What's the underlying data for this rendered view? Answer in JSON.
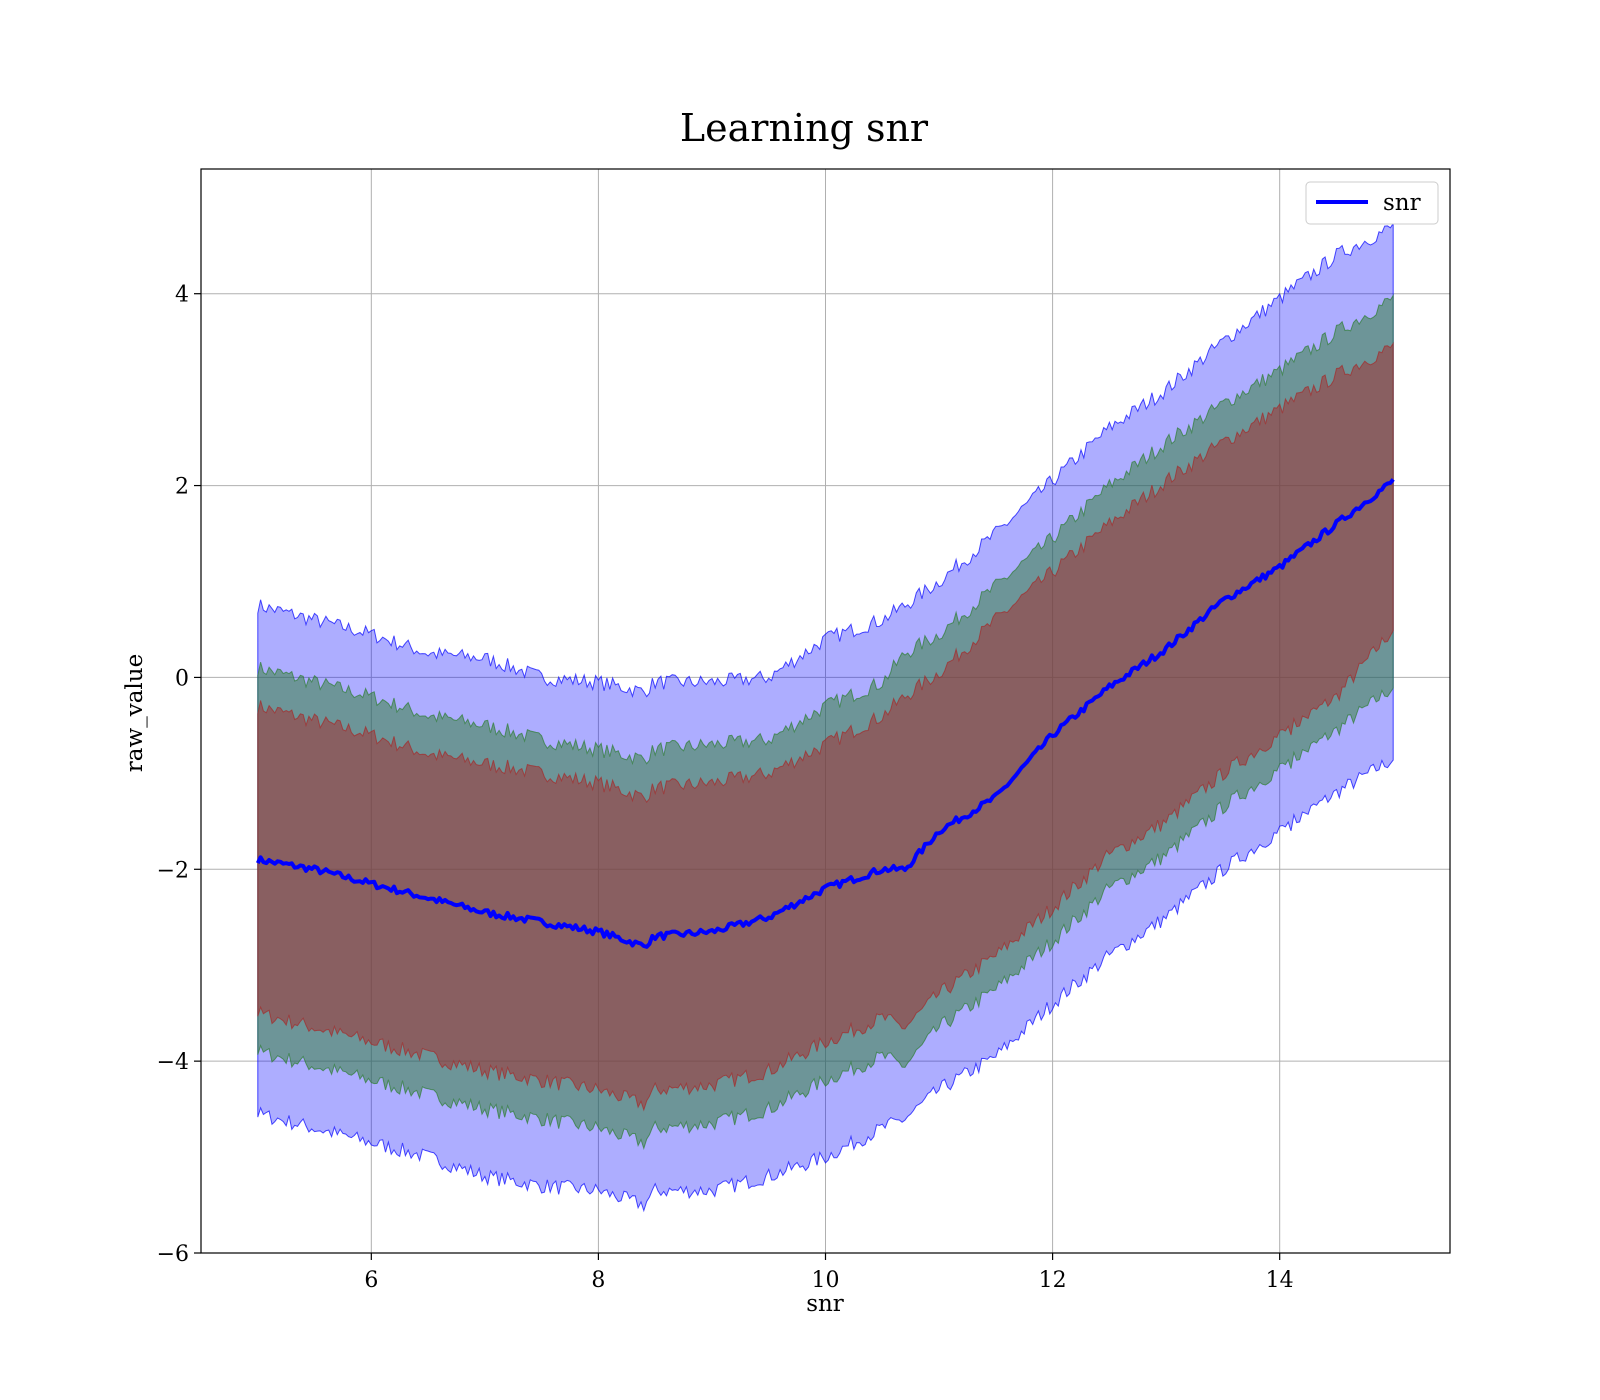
{
  "chart_data": {
    "type": "line",
    "title": "Learning snr",
    "xlabel": "snr",
    "ylabel": "raw_value",
    "xlim": [
      4.5,
      15.5
    ],
    "ylim": [
      -6,
      5.3
    ],
    "xticks": [
      6,
      8,
      10,
      12,
      14
    ],
    "yticks": [
      -6,
      -4,
      -2,
      0,
      2,
      4
    ],
    "xtick_labels": [
      "6",
      "8",
      "10",
      "12",
      "14"
    ],
    "ytick_labels": [
      "−6",
      "−4",
      "−2",
      "0",
      "2",
      "4"
    ],
    "grid": true,
    "legend": {
      "position": "top-right",
      "entries": [
        "snr"
      ]
    },
    "series": [
      {
        "name": "snr",
        "color": "#0000ff",
        "x": [
          5.0,
          5.5,
          6.0,
          6.5,
          7.0,
          7.5,
          8.0,
          8.4,
          8.5,
          9.0,
          9.5,
          10.0,
          10.5,
          10.7,
          11.0,
          11.5,
          12.0,
          12.5,
          13.0,
          13.5,
          14.0,
          14.5,
          15.0
        ],
        "values": [
          -1.9,
          -2.0,
          -2.15,
          -2.3,
          -2.45,
          -2.55,
          -2.65,
          -2.8,
          -2.7,
          -2.65,
          -2.5,
          -2.2,
          -2.0,
          -2.0,
          -1.6,
          -1.25,
          -0.6,
          -0.1,
          0.3,
          0.8,
          1.15,
          1.6,
          2.05
        ]
      }
    ],
    "bands": [
      {
        "color": "#0000ff",
        "upper": [
          0.75,
          0.6,
          0.45,
          0.25,
          0.2,
          0.0,
          -0.05,
          -0.15,
          -0.05,
          -0.05,
          0.0,
          0.4,
          0.6,
          0.75,
          1.0,
          1.5,
          2.05,
          2.6,
          3.0,
          3.5,
          3.95,
          4.4,
          4.7
        ],
        "lower": [
          -4.55,
          -4.7,
          -4.85,
          -5.0,
          -5.2,
          -5.3,
          -5.35,
          -5.5,
          -5.35,
          -5.35,
          -5.2,
          -5.0,
          -4.7,
          -4.6,
          -4.3,
          -3.95,
          -3.4,
          -2.9,
          -2.5,
          -2.0,
          -1.6,
          -1.2,
          -0.85
        ]
      },
      {
        "color": "#2e7d32",
        "upper": [
          0.1,
          -0.05,
          -0.2,
          -0.4,
          -0.5,
          -0.65,
          -0.75,
          -0.85,
          -0.75,
          -0.7,
          -0.65,
          -0.3,
          -0.05,
          0.25,
          0.45,
          0.95,
          1.45,
          2.0,
          2.45,
          2.85,
          3.2,
          3.6,
          3.95
        ],
        "lower": [
          -3.9,
          -4.05,
          -4.2,
          -4.35,
          -4.5,
          -4.6,
          -4.7,
          -4.85,
          -4.7,
          -4.65,
          -4.5,
          -4.2,
          -3.95,
          -4.05,
          -3.65,
          -3.25,
          -2.75,
          -2.2,
          -1.85,
          -1.35,
          -0.95,
          -0.55,
          -0.1
        ]
      },
      {
        "color": "#a52a2a",
        "upper": [
          -0.3,
          -0.45,
          -0.6,
          -0.8,
          -0.9,
          -1.0,
          -1.1,
          -1.25,
          -1.15,
          -1.1,
          -1.0,
          -0.7,
          -0.4,
          -0.2,
          0.05,
          0.6,
          1.1,
          1.6,
          2.05,
          2.45,
          2.8,
          3.15,
          3.45
        ],
        "lower": [
          -3.5,
          -3.65,
          -3.8,
          -3.95,
          -4.1,
          -4.2,
          -4.3,
          -4.45,
          -4.3,
          -4.25,
          -4.1,
          -3.8,
          -3.55,
          -3.65,
          -3.3,
          -2.9,
          -2.4,
          -1.85,
          -1.5,
          -1.0,
          -0.6,
          -0.2,
          0.5
        ]
      }
    ]
  }
}
